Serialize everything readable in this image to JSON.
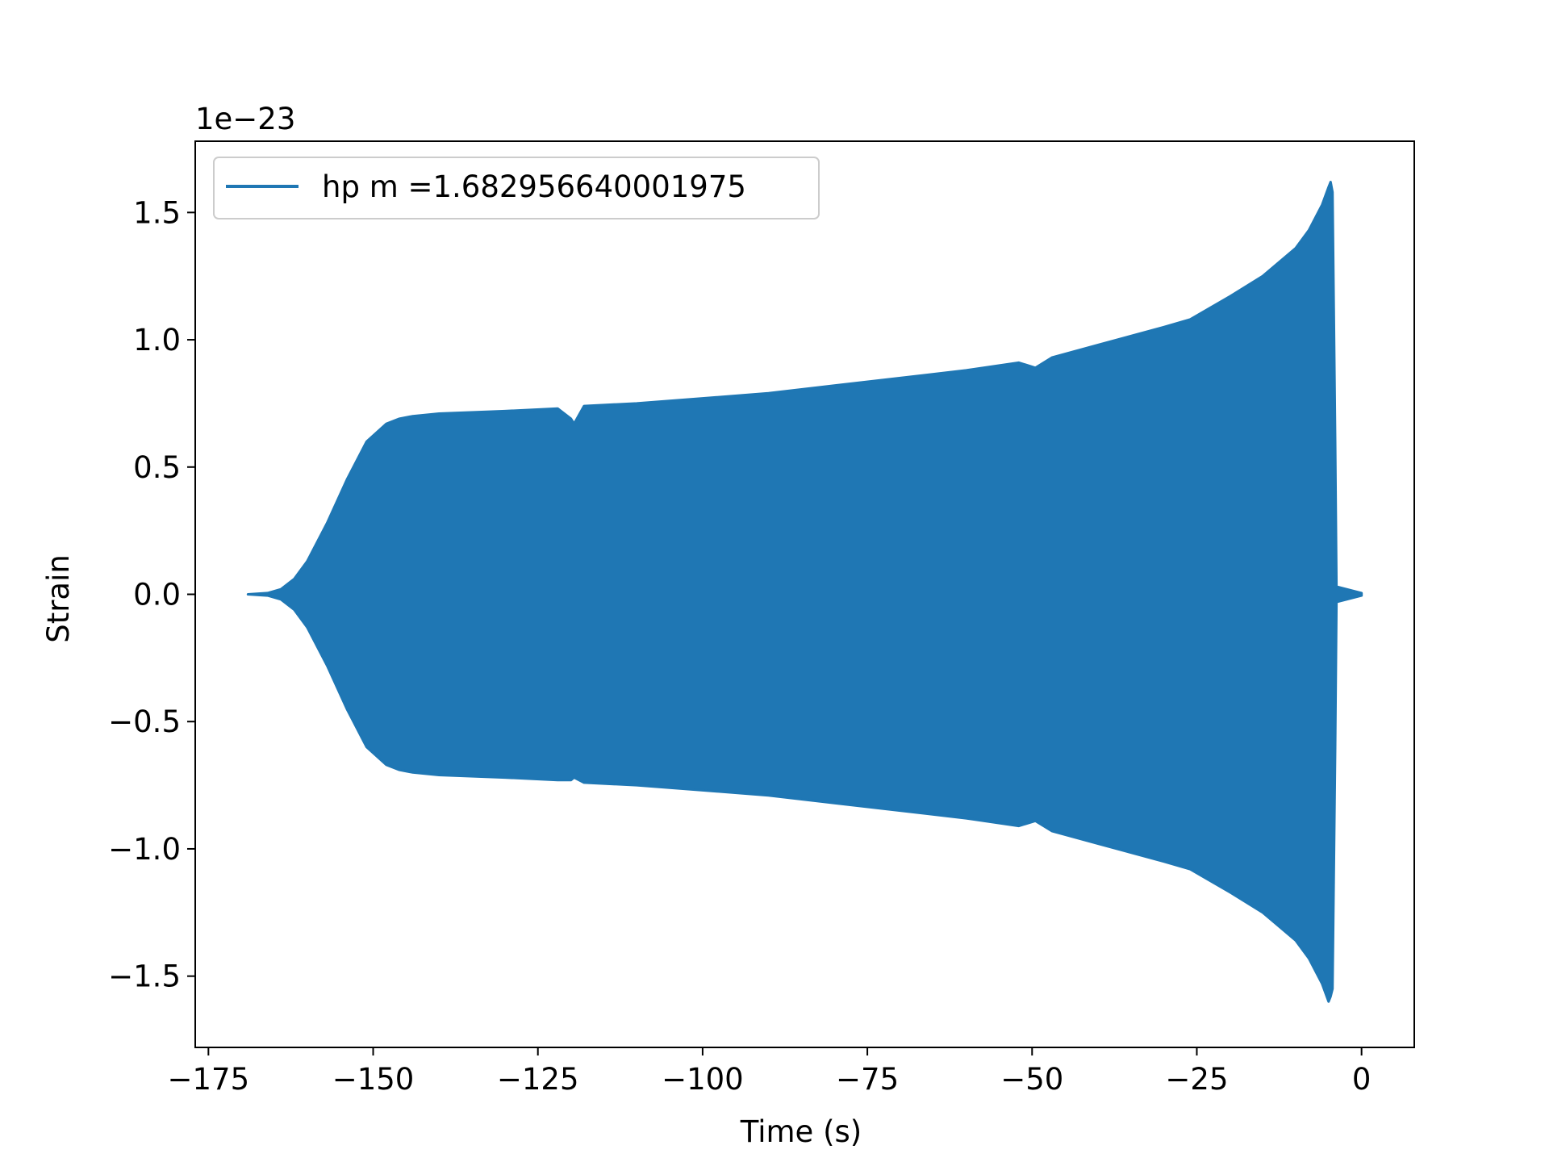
{
  "chart_data": {
    "type": "area",
    "xlabel": "Time (s)",
    "ylabel": "Strain",
    "offset_text": "1e−23",
    "xlim": [
      -177,
      8
    ],
    "ylim": [
      -1.78,
      1.78
    ],
    "x_ticks": [
      -175,
      -150,
      -125,
      -100,
      -75,
      -50,
      -25,
      0
    ],
    "x_tick_labels": [
      "−175",
      "−150",
      "−125",
      "−100",
      "−75",
      "−50",
      "−25",
      "0"
    ],
    "y_ticks": [
      1.5,
      1.0,
      0.5,
      0.0,
      -0.5,
      -1.0,
      -1.5
    ],
    "y_tick_labels": [
      "1.5",
      "1.0",
      "0.5",
      "0.0",
      "−0.5",
      "−1.0",
      "−1.5"
    ],
    "grid": false,
    "legend_position": "top-left",
    "series": [
      {
        "name": "hp m =1.682956640001975",
        "color": "#1f77b4",
        "envelope_x": [
          -169,
          -166,
          -164,
          -162,
          -160,
          -157,
          -154,
          -151,
          -148,
          -146,
          -144,
          -140,
          -130,
          -122,
          -120,
          -119.5,
          -118,
          -110,
          -100,
          -90,
          -80,
          -70,
          -60,
          -52,
          -49.5,
          -47,
          -40,
          -30,
          -26,
          -20,
          -15,
          -10,
          -8,
          -6,
          -5,
          -4.7,
          -4.4,
          -4.0,
          -3.8,
          0
        ],
        "upper": [
          0,
          0.005,
          0.02,
          0.06,
          0.13,
          0.28,
          0.45,
          0.6,
          0.67,
          0.69,
          0.7,
          0.71,
          0.72,
          0.73,
          0.69,
          0.67,
          0.74,
          0.75,
          0.77,
          0.79,
          0.82,
          0.85,
          0.88,
          0.91,
          0.89,
          0.93,
          0.98,
          1.05,
          1.08,
          1.17,
          1.25,
          1.36,
          1.43,
          1.53,
          1.6,
          1.62,
          1.58,
          0.6,
          0.03,
          0.005
        ],
        "lower": [
          0,
          -0.005,
          -0.02,
          -0.06,
          -0.13,
          -0.28,
          -0.45,
          -0.6,
          -0.67,
          -0.69,
          -0.7,
          -0.71,
          -0.72,
          -0.73,
          -0.73,
          -0.72,
          -0.74,
          -0.75,
          -0.77,
          -0.79,
          -0.82,
          -0.85,
          -0.88,
          -0.91,
          -0.89,
          -0.93,
          -0.98,
          -1.05,
          -1.08,
          -1.17,
          -1.25,
          -1.36,
          -1.43,
          -1.53,
          -1.6,
          -1.58,
          -1.55,
          -0.6,
          -0.03,
          -0.005
        ]
      }
    ]
  }
}
